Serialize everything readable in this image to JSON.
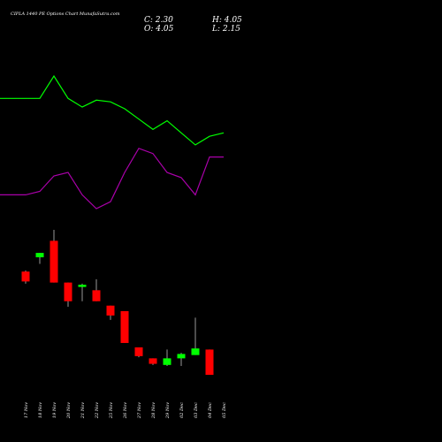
{
  "title": "CIPLA 1440 PE Options Chart MunafaSutra.com",
  "ohlc": {
    "c": "C: 2.30",
    "h": "H: 4.05",
    "o": "O: 4.05",
    "l": "L: 2.15"
  },
  "colors": {
    "background": "#000000",
    "up": "#00ff00",
    "down": "#ff0000",
    "line1": "#00ff00",
    "line2": "#aa00aa",
    "wick": "#ffffff"
  },
  "chart_data": {
    "type": "candlestick",
    "title": "CIPLA 1440 PE Options Chart MunafaSutra.com",
    "dates": [
      "17 Nov",
      "18 Nov",
      "19 Nov",
      "20 Nov",
      "21 Nov",
      "22 Nov",
      "25 Nov",
      "26 Nov",
      "27 Nov",
      "28 Nov",
      "29 Nov",
      "02 Dec",
      "03 Dec",
      "04 Dec",
      "05 Dec"
    ],
    "candles": [
      {
        "date": "17 Nov",
        "open": 9.1,
        "high": 9.2,
        "low": 8.0,
        "close": 8.2
      },
      {
        "date": "18 Nov",
        "open": 10.4,
        "high": 10.8,
        "low": 9.8,
        "close": 10.8
      },
      {
        "date": "19 Nov",
        "open": 11.9,
        "high": 12.9,
        "low": 8.1,
        "close": 8.1
      },
      {
        "date": "20 Nov",
        "open": 8.1,
        "high": 8.1,
        "low": 5.9,
        "close": 6.4
      },
      {
        "date": "21 Nov",
        "open": 7.7,
        "high": 8.0,
        "low": 6.4,
        "close": 7.9
      },
      {
        "date": "22 Nov",
        "open": 7.4,
        "high": 8.4,
        "low": 6.4,
        "close": 6.4
      },
      {
        "date": "25 Nov",
        "open": 6.0,
        "high": 6.0,
        "low": 4.7,
        "close": 5.1
      },
      {
        "date": "26 Nov",
        "open": 5.5,
        "high": 5.5,
        "low": 2.6,
        "close": 2.6
      },
      {
        "date": "27 Nov",
        "open": 2.2,
        "high": 2.2,
        "low": 1.3,
        "close": 1.4
      },
      {
        "date": "28 Nov",
        "open": 1.2,
        "high": 1.2,
        "low": 0.6,
        "close": 0.7
      },
      {
        "date": "29 Nov",
        "open": 0.6,
        "high": 2.0,
        "low": 0.5,
        "close": 1.2
      },
      {
        "date": "02 Dec",
        "open": 1.2,
        "high": 1.7,
        "low": 0.5,
        "close": 1.6
      },
      {
        "date": "03 Dec",
        "open": 1.5,
        "high": 4.9,
        "low": 1.5,
        "close": 2.1
      },
      {
        "date": "04 Dec",
        "open": 2.0,
        "high": 2.0,
        "low": -0.3,
        "close": -0.3
      },
      {
        "date": "05 Dec",
        "open": null,
        "high": null,
        "low": null,
        "close": null
      }
    ],
    "lines": [
      {
        "color": "#00ff00",
        "values": [
          99,
          99,
          112,
          99,
          94,
          98,
          97,
          93,
          87,
          81,
          86,
          79,
          72,
          77,
          79
        ]
      },
      {
        "color": "#aa00aa",
        "values": [
          43,
          45,
          54,
          56,
          43,
          35,
          39,
          56,
          70,
          67,
          56,
          53,
          43,
          65,
          65
        ]
      }
    ]
  }
}
